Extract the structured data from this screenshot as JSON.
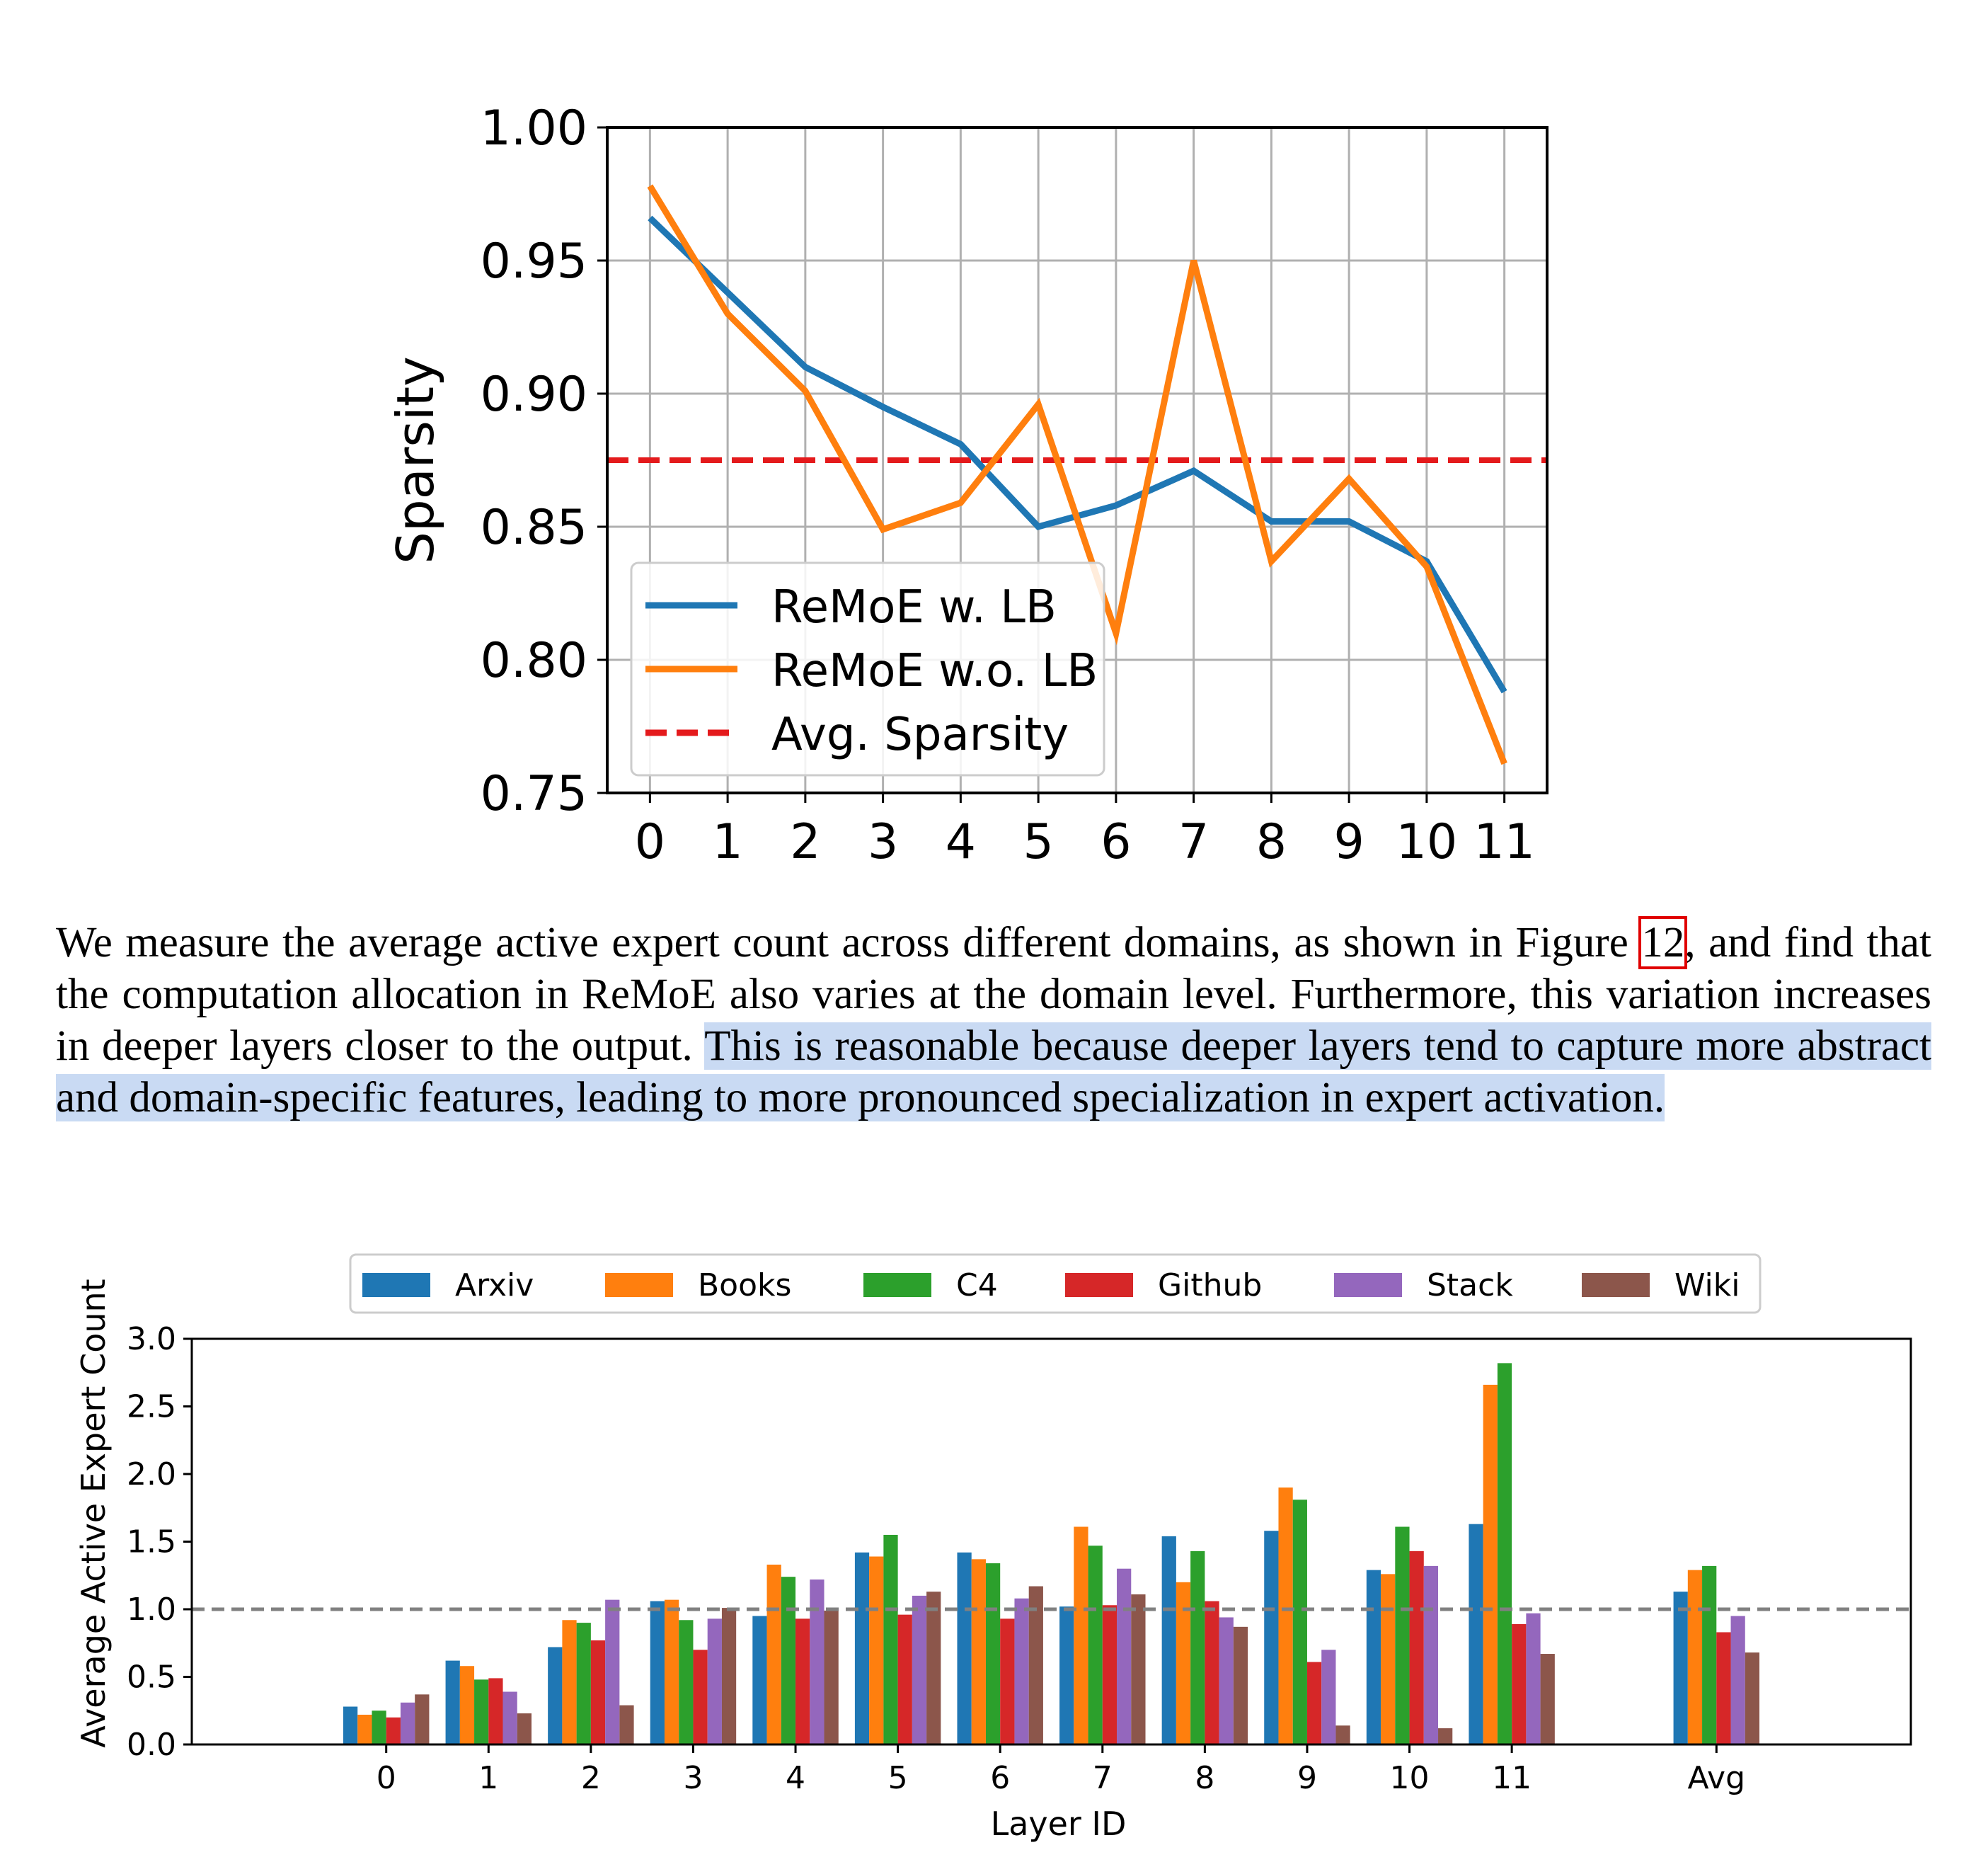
{
  "chart_data": [
    {
      "type": "line",
      "title": "",
      "xlabel": "",
      "ylabel": "Sparsity",
      "x": [
        0,
        1,
        2,
        3,
        4,
        5,
        6,
        7,
        8,
        9,
        10,
        11
      ],
      "xticklabels": [
        "0",
        "1",
        "2",
        "3",
        "4",
        "5",
        "6",
        "7",
        "8",
        "9",
        "10",
        "11"
      ],
      "ylim": [
        0.75,
        1.0
      ],
      "yticks": [
        "0.75",
        "0.80",
        "0.85",
        "0.90",
        "0.95",
        "1.00"
      ],
      "grid": true,
      "legend_position": "lower-left",
      "series": [
        {
          "name": "ReMoE w. LB",
          "color": "#1f77b4",
          "values": [
            0.966,
            0.938,
            0.91,
            0.895,
            0.881,
            0.85,
            0.858,
            0.871,
            0.852,
            0.852,
            0.837,
            0.788
          ]
        },
        {
          "name": "ReMoE w.o. LB",
          "color": "#ff7f0e",
          "values": [
            0.978,
            0.93,
            0.901,
            0.849,
            0.859,
            0.896,
            0.81,
            0.95,
            0.837,
            0.868,
            0.835,
            0.761
          ]
        }
      ],
      "reference_line": {
        "name": "Avg. Sparsity",
        "color": "#e41a1c",
        "value": 0.875
      }
    },
    {
      "type": "bar",
      "title": "",
      "xlabel": "Layer ID",
      "ylabel": "Average Active Expert Count",
      "categories": [
        "0",
        "1",
        "2",
        "3",
        "4",
        "5",
        "6",
        "7",
        "8",
        "9",
        "10",
        "11",
        "Avg"
      ],
      "ylim": [
        0,
        3.0
      ],
      "yticks": [
        "0.0",
        "0.5",
        "1.0",
        "1.5",
        "2.0",
        "2.5",
        "3.0"
      ],
      "grid": false,
      "legend_position": "top-center",
      "reference_line": {
        "value": 1.0,
        "color": "#808080"
      },
      "series": [
        {
          "name": "Arxiv",
          "color": "#1f77b4",
          "values": [
            0.28,
            0.62,
            0.72,
            1.06,
            0.95,
            1.42,
            1.42,
            1.02,
            1.54,
            1.58,
            1.29,
            1.63,
            1.13
          ]
        },
        {
          "name": "Books",
          "color": "#ff7f0e",
          "values": [
            0.22,
            0.58,
            0.92,
            1.07,
            1.33,
            1.39,
            1.37,
            1.61,
            1.2,
            1.9,
            1.26,
            2.66,
            1.29
          ]
        },
        {
          "name": "C4",
          "color": "#2ca02c",
          "values": [
            0.25,
            0.48,
            0.9,
            0.92,
            1.24,
            1.55,
            1.34,
            1.47,
            1.43,
            1.81,
            1.61,
            2.82,
            1.32
          ]
        },
        {
          "name": "Github",
          "color": "#d62728",
          "values": [
            0.2,
            0.49,
            0.77,
            0.7,
            0.93,
            0.96,
            0.93,
            1.03,
            1.06,
            0.61,
            1.43,
            0.89,
            0.83
          ]
        },
        {
          "name": "Stack",
          "color": "#9467bd",
          "values": [
            0.31,
            0.39,
            1.07,
            0.93,
            1.22,
            1.1,
            1.08,
            1.3,
            0.94,
            0.7,
            1.32,
            0.97,
            0.95
          ]
        },
        {
          "name": "Wiki",
          "color": "#8c564b",
          "values": [
            0.37,
            0.23,
            0.29,
            1.01,
            0.99,
            1.13,
            1.17,
            1.11,
            0.87,
            0.14,
            0.12,
            0.67,
            0.68
          ]
        }
      ]
    }
  ],
  "paragraph": {
    "text_1": "We measure the average active expert count across different domains, as shown in Figure ",
    "figure_ref": "12",
    "text_2": ", and find that the computation allocation in ReMoE also varies at the domain level. Furthermore, this variation increases in deeper layers closer to the output. ",
    "highlighted": "This is reasonable because deeper layers tend to capture more abstract and domain-specific features, leading to more pronounced specialization in expert activation."
  }
}
